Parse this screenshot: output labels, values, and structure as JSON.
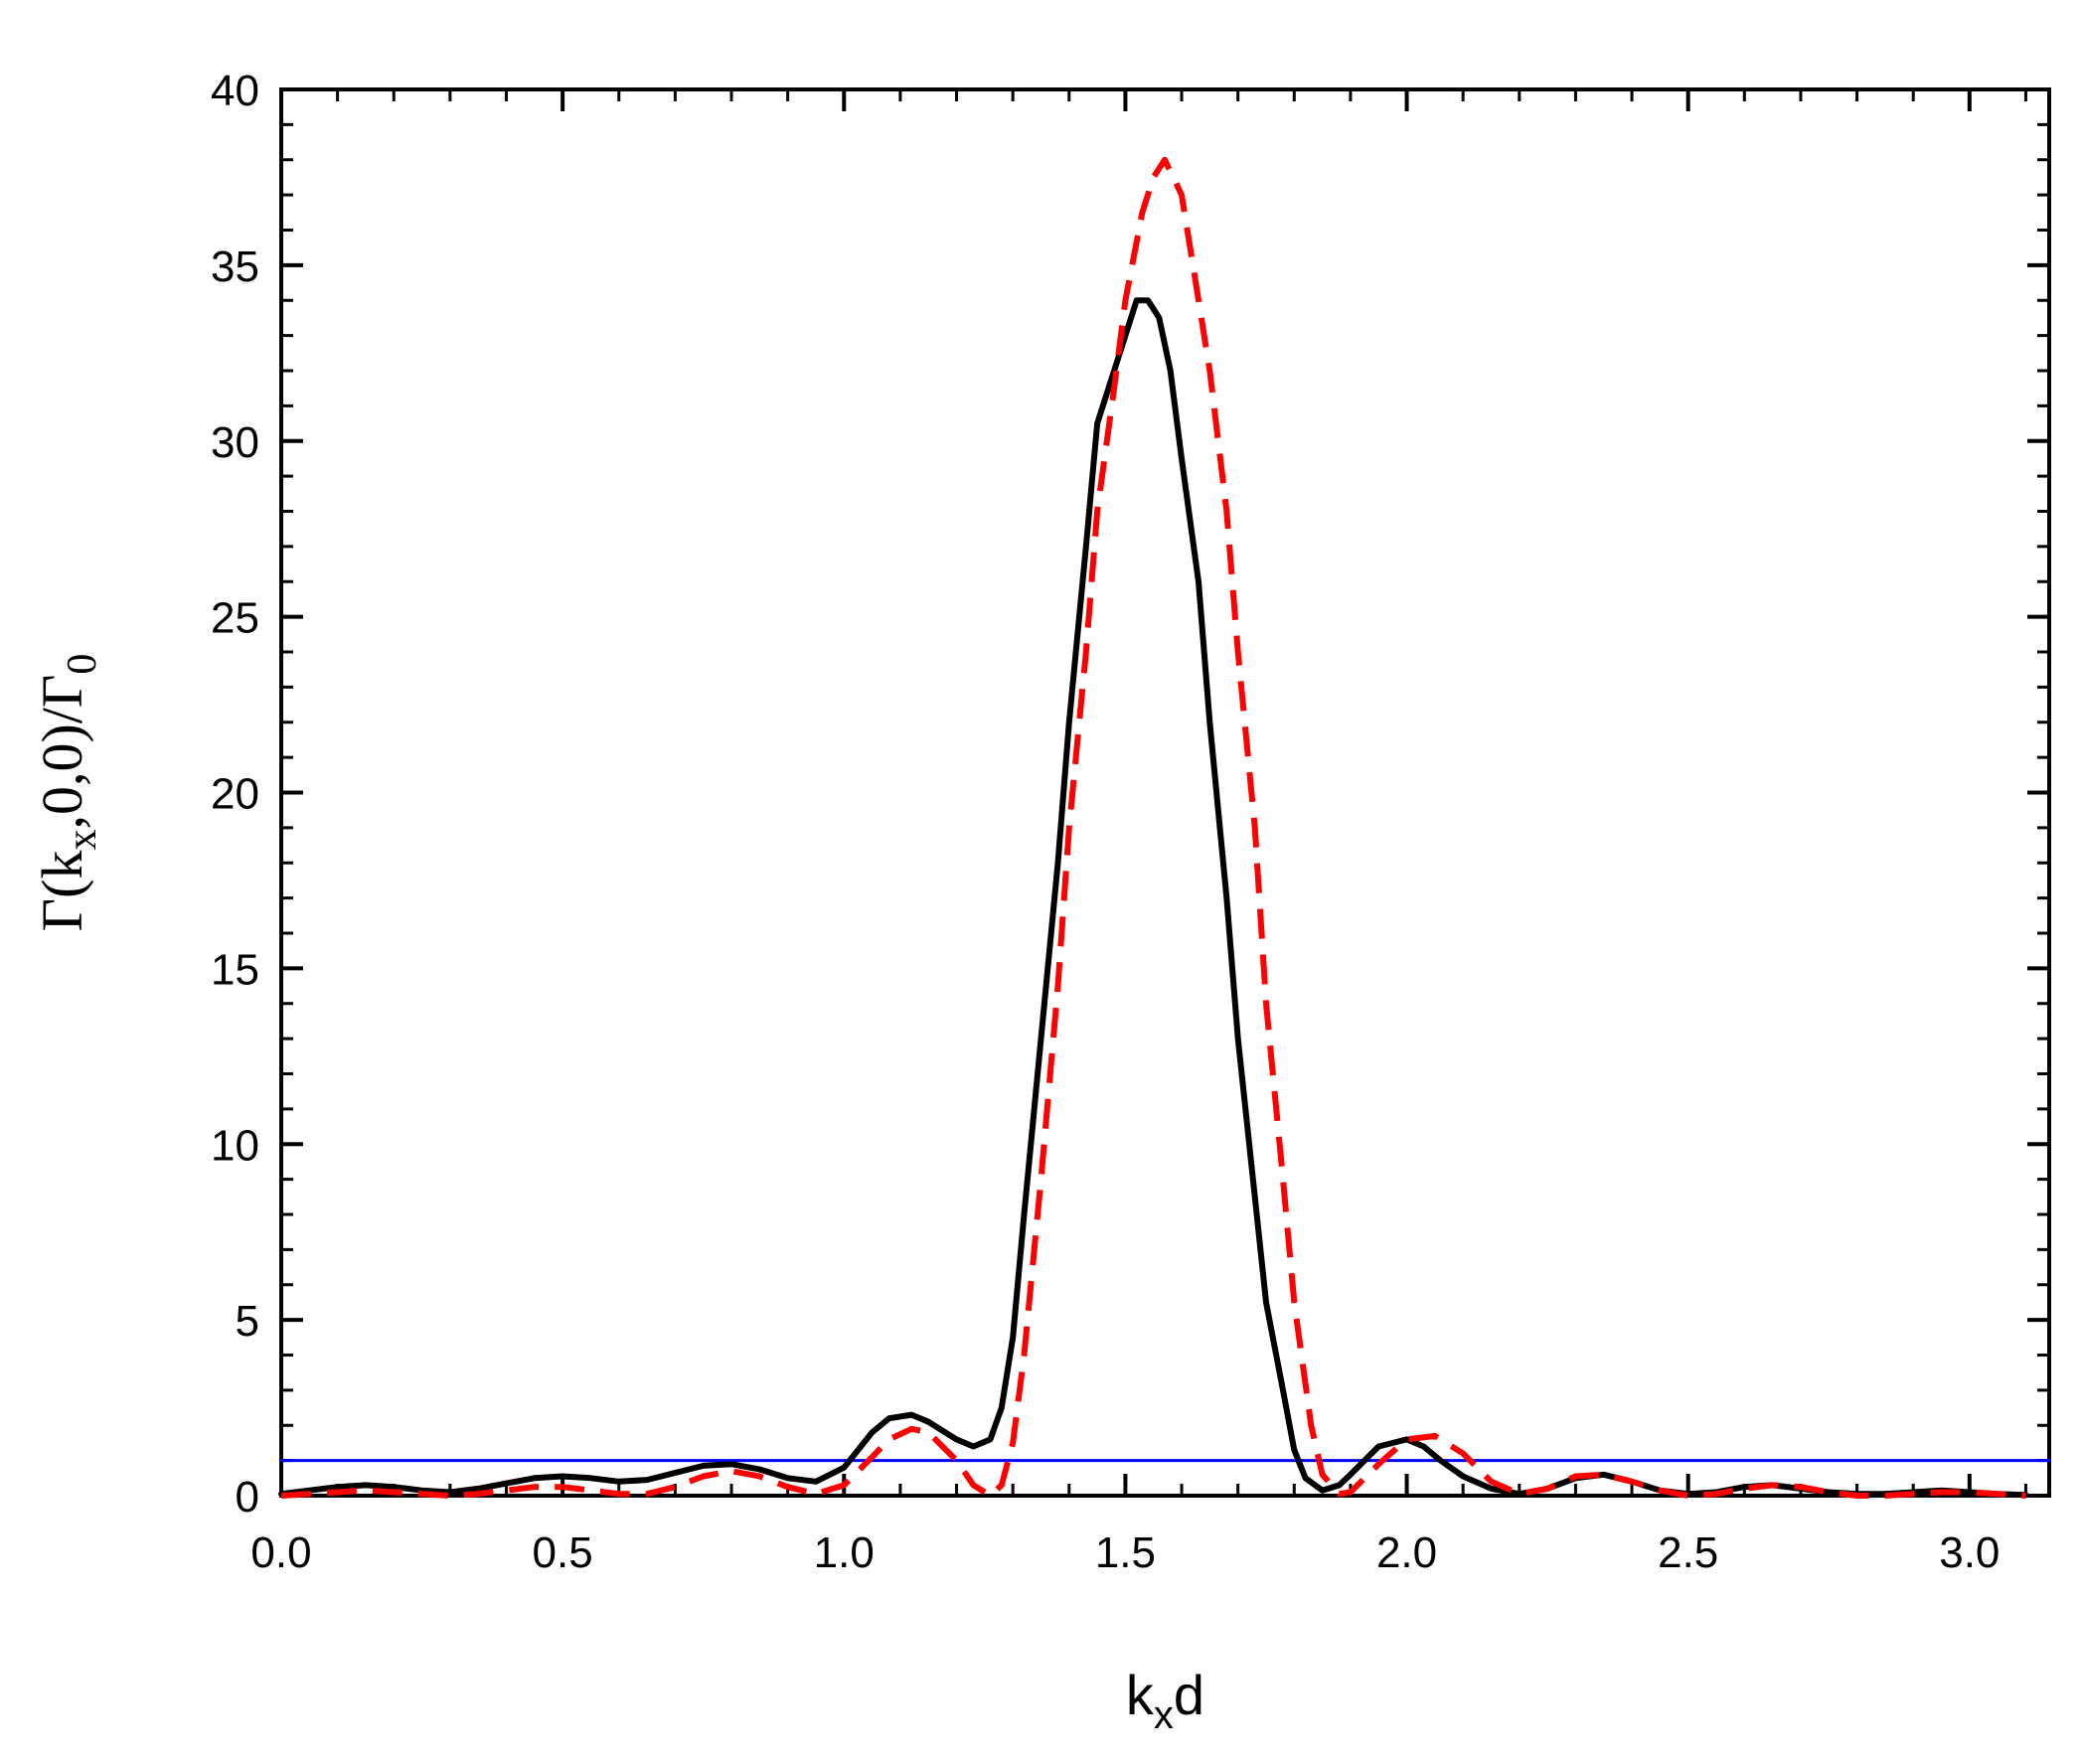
{
  "chart_data": {
    "type": "line",
    "xlabel": {
      "base": "k",
      "sub": "x",
      "tail": "d"
    },
    "ylabel": {
      "prefix": "Γ(k",
      "sub1": "x",
      "middle": ",0,0)/Γ",
      "sub2": "0"
    },
    "xlim": [
      0.0,
      3.1416
    ],
    "ylim": [
      0,
      40
    ],
    "xticks": [
      "0.0",
      "0.5",
      "1.0",
      "1.5",
      "2.0",
      "2.5",
      "3.0"
    ],
    "yticks": [
      "0",
      "5",
      "10",
      "15",
      "20",
      "25",
      "30",
      "35",
      "40"
    ],
    "grid": false,
    "legend": "none",
    "colors": {
      "solid": "#000000",
      "dashed": "#ff0000",
      "reference": "#0000ff"
    },
    "series": [
      {
        "style": "solid",
        "x": [
          0.0,
          0.05,
          0.1,
          0.15,
          0.2,
          0.25,
          0.3,
          0.35,
          0.4,
          0.45,
          0.5,
          0.55,
          0.6,
          0.65,
          0.7,
          0.75,
          0.8,
          0.85,
          0.9,
          0.95,
          1.0,
          1.05,
          1.08,
          1.12,
          1.15,
          1.2,
          1.23,
          1.26,
          1.28,
          1.3,
          1.32,
          1.35,
          1.38,
          1.4,
          1.43,
          1.45,
          1.48,
          1.5,
          1.52,
          1.54,
          1.56,
          1.58,
          1.6,
          1.63,
          1.65,
          1.68,
          1.7,
          1.73,
          1.75,
          1.78,
          1.8,
          1.82,
          1.85,
          1.88,
          1.9,
          1.95,
          2.0,
          2.03,
          2.06,
          2.1,
          2.15,
          2.2,
          2.25,
          2.3,
          2.35,
          2.4,
          2.45,
          2.5,
          2.55,
          2.6,
          2.65,
          2.7,
          2.75,
          2.8,
          2.85,
          2.9,
          2.95,
          3.0,
          3.05,
          3.1
        ],
        "y": [
          0.05,
          0.15,
          0.25,
          0.3,
          0.25,
          0.15,
          0.1,
          0.2,
          0.35,
          0.5,
          0.55,
          0.5,
          0.4,
          0.45,
          0.65,
          0.85,
          0.9,
          0.75,
          0.5,
          0.4,
          0.8,
          1.8,
          2.2,
          2.3,
          2.1,
          1.6,
          1.4,
          1.6,
          2.5,
          4.5,
          8.0,
          13.0,
          18.0,
          22.0,
          27.0,
          30.5,
          32.0,
          33.0,
          34.0,
          34.0,
          33.5,
          32.0,
          29.5,
          26.0,
          22.0,
          17.0,
          13.0,
          8.5,
          5.5,
          3.0,
          1.3,
          0.5,
          0.15,
          0.3,
          0.6,
          1.4,
          1.6,
          1.4,
          1.0,
          0.55,
          0.2,
          0.05,
          0.2,
          0.5,
          0.6,
          0.4,
          0.15,
          0.05,
          0.1,
          0.25,
          0.3,
          0.2,
          0.1,
          0.05,
          0.05,
          0.1,
          0.15,
          0.1,
          0.05,
          0.02
        ]
      },
      {
        "style": "dashed",
        "x": [
          0.0,
          0.05,
          0.1,
          0.15,
          0.2,
          0.25,
          0.3,
          0.35,
          0.4,
          0.45,
          0.5,
          0.55,
          0.6,
          0.65,
          0.7,
          0.75,
          0.8,
          0.85,
          0.9,
          0.95,
          1.0,
          1.05,
          1.08,
          1.12,
          1.15,
          1.2,
          1.23,
          1.26,
          1.28,
          1.3,
          1.32,
          1.35,
          1.38,
          1.4,
          1.43,
          1.45,
          1.48,
          1.5,
          1.53,
          1.55,
          1.57,
          1.6,
          1.62,
          1.65,
          1.68,
          1.7,
          1.73,
          1.75,
          1.78,
          1.8,
          1.83,
          1.85,
          1.88,
          1.9,
          1.95,
          2.0,
          2.05,
          2.1,
          2.15,
          2.2,
          2.25,
          2.3,
          2.35,
          2.4,
          2.45,
          2.5,
          2.55,
          2.6,
          2.65,
          2.7,
          2.75,
          2.8,
          2.85,
          2.9,
          2.95,
          3.0,
          3.05,
          3.1
        ],
        "y": [
          0.0,
          0.05,
          0.1,
          0.15,
          0.1,
          0.05,
          0.0,
          0.05,
          0.15,
          0.25,
          0.25,
          0.15,
          0.05,
          0.05,
          0.25,
          0.55,
          0.7,
          0.55,
          0.25,
          0.05,
          0.3,
          1.1,
          1.6,
          1.9,
          1.8,
          1.0,
          0.3,
          0.0,
          0.3,
          1.5,
          4.0,
          9.0,
          14.5,
          19.0,
          24.0,
          28.0,
          31.5,
          34.0,
          36.5,
          37.5,
          38.0,
          37.0,
          35.0,
          32.0,
          28.0,
          24.0,
          19.0,
          14.0,
          9.0,
          5.5,
          2.0,
          0.6,
          0.05,
          0.1,
          0.9,
          1.6,
          1.7,
          1.2,
          0.4,
          0.05,
          0.2,
          0.55,
          0.6,
          0.4,
          0.15,
          0.0,
          0.05,
          0.2,
          0.3,
          0.25,
          0.1,
          0.0,
          0.0,
          0.05,
          0.1,
          0.1,
          0.05,
          0.0
        ]
      },
      {
        "style": "reference",
        "x": [
          0.0,
          3.1416
        ],
        "y": [
          1.0,
          1.0
        ]
      }
    ]
  }
}
